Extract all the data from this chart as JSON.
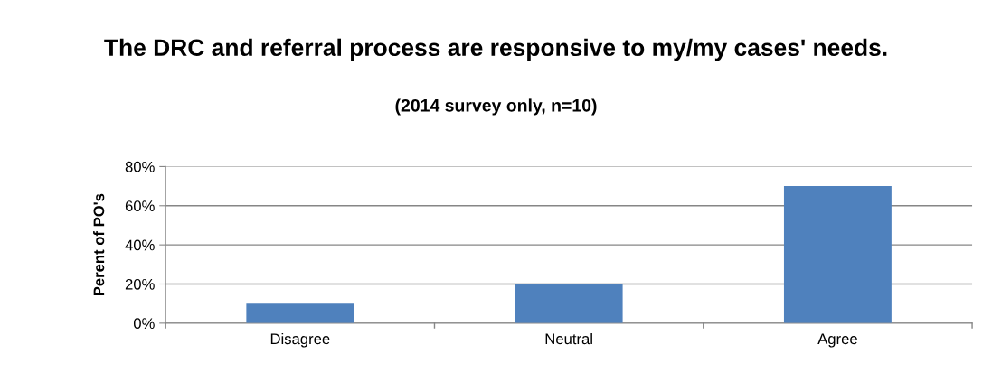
{
  "chart_data": {
    "type": "bar",
    "title": "The DRC and referral process are responsive to my/my cases' needs.",
    "subtitle": "(2014 survey only, n=10)",
    "ylabel": "Perent of PO's",
    "categories": [
      "Disagree",
      "Neutral",
      "Agree"
    ],
    "values": [
      10,
      20,
      70
    ],
    "color": "#4f81bd",
    "ylim": [
      0,
      80
    ],
    "yticks": [
      {
        "value": 0,
        "label": "0%"
      },
      {
        "value": 20,
        "label": "20%"
      },
      {
        "value": 40,
        "label": "40%"
      },
      {
        "value": 60,
        "label": "60%"
      },
      {
        "value": 80,
        "label": "80%"
      }
    ],
    "grid": "y",
    "legend": false
  }
}
